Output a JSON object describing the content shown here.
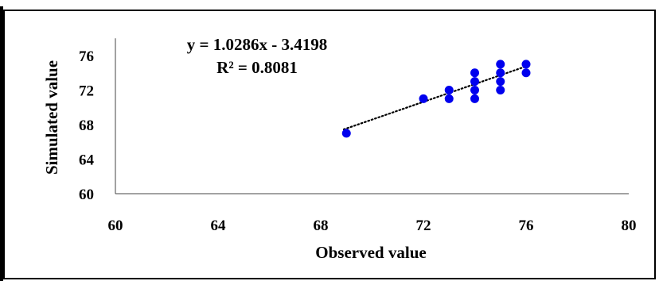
{
  "chart_data": {
    "type": "scatter",
    "title": "",
    "xlabel": "Observed value",
    "ylabel": "Simulated value",
    "xlim": [
      60,
      80
    ],
    "ylim": [
      60,
      78
    ],
    "x_ticks": [
      "60",
      "64",
      "68",
      "72",
      "76",
      "80"
    ],
    "y_ticks": [
      "60",
      "64",
      "68",
      "72",
      "76"
    ],
    "grid": false,
    "legend": "none",
    "marker_color": "#0000ee",
    "trendline": {
      "style": "dotted",
      "slope": 1.0286,
      "intercept": -3.4198,
      "x_range": [
        69,
        76
      ],
      "equation": "y = 1.0286x - 3.4198",
      "r_squared": "R² = 0.8081"
    },
    "points": [
      {
        "x": 69,
        "y": 67
      },
      {
        "x": 72,
        "y": 71
      },
      {
        "x": 73,
        "y": 71
      },
      {
        "x": 73,
        "y": 72
      },
      {
        "x": 74,
        "y": 71
      },
      {
        "x": 74,
        "y": 72
      },
      {
        "x": 74,
        "y": 73
      },
      {
        "x": 74,
        "y": 74
      },
      {
        "x": 75,
        "y": 72
      },
      {
        "x": 75,
        "y": 73
      },
      {
        "x": 75,
        "y": 74
      },
      {
        "x": 75,
        "y": 75
      },
      {
        "x": 76,
        "y": 74
      },
      {
        "x": 76,
        "y": 75
      }
    ]
  }
}
